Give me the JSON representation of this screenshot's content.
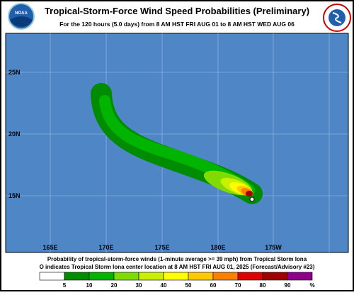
{
  "header": {
    "title": "Tropical-Storm-Force Wind Speed Probabilities (Preliminary)",
    "subtitle": "For the 120 hours (5.0 days) from 8 AM HST FRI AUG 01 to 8 AM HST WED AUG 06",
    "logo": "NOAA"
  },
  "map": {
    "lat_labels": [
      "25N",
      "20N",
      "15N"
    ],
    "lon_labels": [
      "165E",
      "170E",
      "175E",
      "180E",
      "175W"
    ]
  },
  "footer": {
    "line1": "Probability of tropical-storm-force winds (1-minute average >= 39 mph) from Tropical Storm Iona",
    "line2": "O indicates Tropical Storm Iona center location at 8 AM HST FRI AUG 01, 2025 (Forecast/Advisory #23)"
  },
  "legend": {
    "colors": [
      "#ffffff",
      "#008c00",
      "#00b400",
      "#80dc00",
      "#c8f000",
      "#ffff00",
      "#ffc800",
      "#ff8000",
      "#e00000",
      "#a00000",
      "#8c008c"
    ],
    "labels": [
      "5",
      "10",
      "20",
      "30",
      "40",
      "50",
      "60",
      "70",
      "80",
      "90",
      "%"
    ]
  }
}
